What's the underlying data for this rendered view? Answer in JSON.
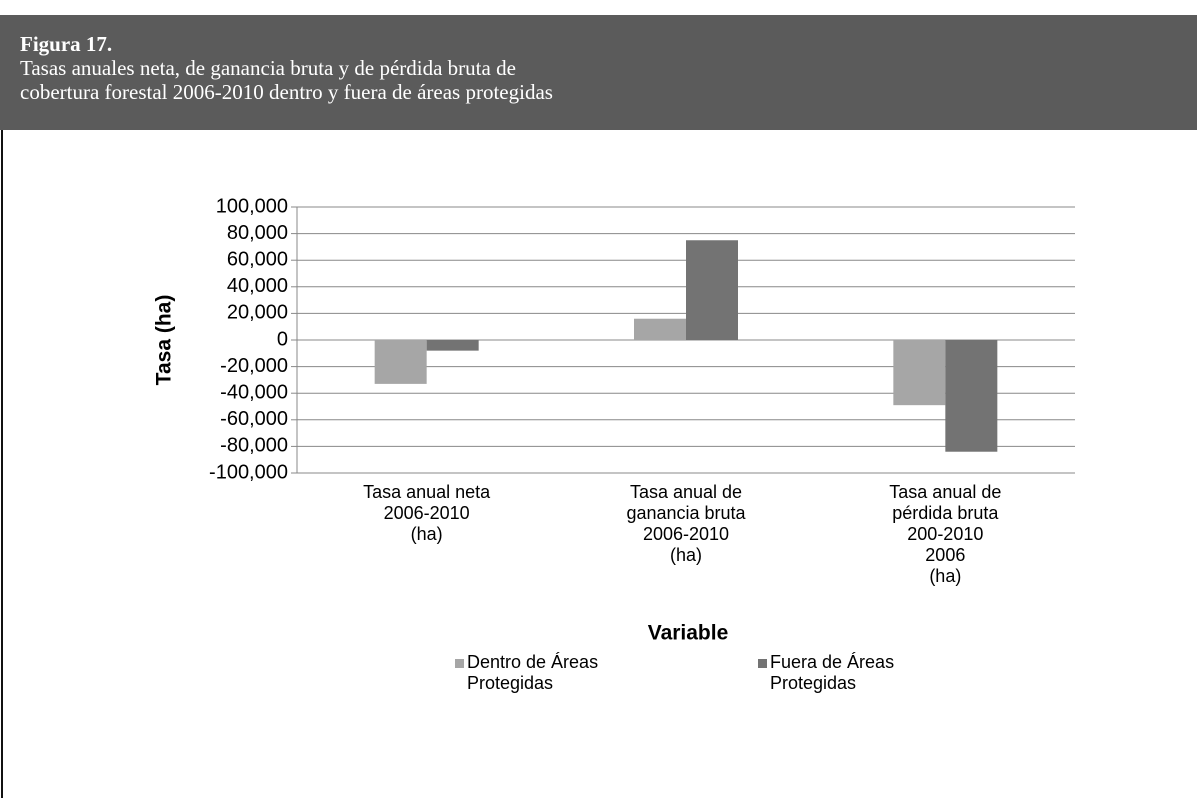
{
  "header": {
    "label": "Figura 17.",
    "caption": "Tasas anuales neta, de ganancia bruta y de pérdida bruta de\ncobertura forestal 2006-2010 dentro y fuera de áreas protegidas"
  },
  "chart_data": {
    "type": "bar",
    "categories": [
      "Tasa anual neta\n2006-2010\n(ha)",
      "Tasa anual de\nganancia bruta\n2006-2010\n(ha)",
      "Tasa anual de\npérdida bruta\n200-2010\n2006\n(ha)"
    ],
    "series": [
      {
        "name": "Dentro de Áreas\nProtegidas",
        "color": "#a6a6a6",
        "values": [
          -33000,
          16000,
          -49000
        ]
      },
      {
        "name": "Fuera de Áreas\nProtegidas",
        "color": "#737373",
        "values": [
          -8000,
          75000,
          -84000
        ]
      }
    ],
    "x_label": "Variable",
    "y_label": "Tasa (ha)",
    "ylim": [
      -100000,
      100000
    ],
    "yticks": [
      {
        "value": -100000,
        "label": "-100,000"
      },
      {
        "value": -80000,
        "label": "-80,000"
      },
      {
        "value": -60000,
        "label": "-60,000"
      },
      {
        "value": -40000,
        "label": "-40,000"
      },
      {
        "value": -20000,
        "label": "-20,000"
      },
      0,
      {
        "value": 20000,
        "label": "20,000"
      },
      {
        "value": 40000,
        "label": "40,000"
      },
      {
        "value": 60000,
        "label": "60,000"
      },
      {
        "value": 80000,
        "label": "80,000"
      },
      {
        "value": 100000,
        "label": "100,000"
      }
    ],
    "grid": true,
    "legend": "bottom"
  }
}
